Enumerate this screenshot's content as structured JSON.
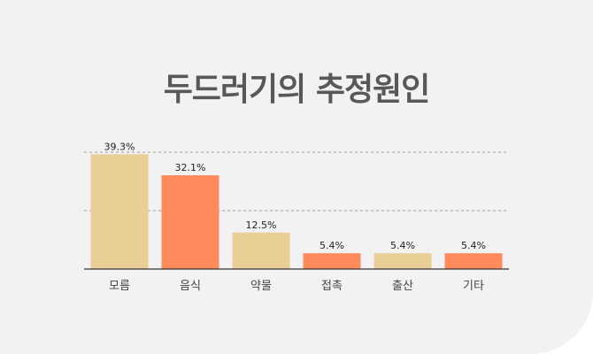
{
  "chart_data": {
    "type": "bar",
    "title": "두드러기의 추정원인",
    "categories": [
      "모름",
      "음식",
      "약물",
      "접촉",
      "출산",
      "기타"
    ],
    "values": [
      39.3,
      32.1,
      12.5,
      5.4,
      5.4,
      5.4
    ],
    "value_labels": [
      "39.3%",
      "32.1%",
      "12.5%",
      "5.4%",
      "5.4%",
      "5.4%"
    ],
    "colors": [
      "#e9cf96",
      "#ff8a5c",
      "#e9cf96",
      "#ff8a5c",
      "#e9cf96",
      "#ff8a5c"
    ],
    "ylim": [
      0,
      40
    ],
    "gridlines": [
      20,
      40
    ],
    "grid": true
  }
}
